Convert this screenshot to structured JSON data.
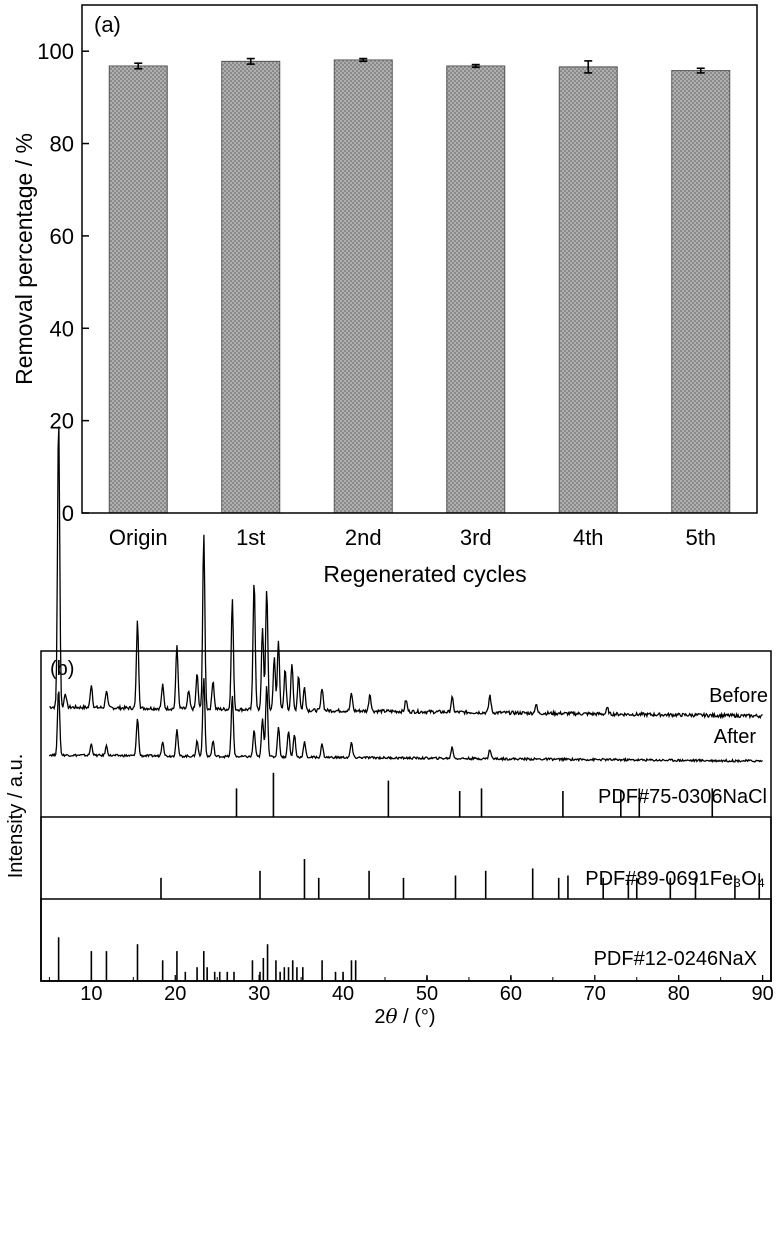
{
  "chart_data": [
    {
      "type": "bar",
      "panel_label": "(a)",
      "categories": [
        "Origin",
        "1st",
        "2nd",
        "3rd",
        "4th",
        "5th"
      ],
      "values": [
        96.8,
        97.8,
        98.1,
        96.8,
        96.6,
        95.8
      ],
      "errors": [
        0.6,
        0.6,
        0.3,
        0.3,
        1.3,
        0.5
      ],
      "xlabel": "Regenerated cycles",
      "ylabel": "Removal percentage / %",
      "ylim": [
        0,
        110
      ],
      "yticks": [
        0,
        20,
        40,
        60,
        80,
        100
      ],
      "bar_color": "#8a8a8a",
      "grid": false
    },
    {
      "type": "line",
      "panel_label": "(b)",
      "xlabel_pre": "2",
      "xlabel_theta": "θ",
      "xlabel_post": " / (°)",
      "ylabel": "Intensity / a.u.",
      "xlim": [
        4,
        91
      ],
      "xticks": [
        10,
        20,
        30,
        40,
        50,
        60,
        70,
        80,
        90
      ],
      "series": [
        {
          "name": "Before",
          "peaks": [
            {
              "x": 6.1,
              "h": 1.0
            },
            {
              "x": 6.9,
              "h": 0.05
            },
            {
              "x": 10.0,
              "h": 0.08
            },
            {
              "x": 11.8,
              "h": 0.06
            },
            {
              "x": 15.5,
              "h": 0.3
            },
            {
              "x": 18.5,
              "h": 0.08
            },
            {
              "x": 20.2,
              "h": 0.22
            },
            {
              "x": 21.6,
              "h": 0.06
            },
            {
              "x": 22.6,
              "h": 0.12
            },
            {
              "x": 23.4,
              "h": 0.6
            },
            {
              "x": 24.5,
              "h": 0.1
            },
            {
              "x": 26.8,
              "h": 0.38
            },
            {
              "x": 29.4,
              "h": 0.45
            },
            {
              "x": 30.4,
              "h": 0.28
            },
            {
              "x": 30.9,
              "h": 0.42
            },
            {
              "x": 31.8,
              "h": 0.18
            },
            {
              "x": 32.3,
              "h": 0.24
            },
            {
              "x": 33.1,
              "h": 0.14
            },
            {
              "x": 33.9,
              "h": 0.16
            },
            {
              "x": 34.7,
              "h": 0.12
            },
            {
              "x": 35.4,
              "h": 0.08
            },
            {
              "x": 37.5,
              "h": 0.08
            },
            {
              "x": 41.0,
              "h": 0.06
            },
            {
              "x": 43.2,
              "h": 0.06
            },
            {
              "x": 47.5,
              "h": 0.04
            },
            {
              "x": 53.0,
              "h": 0.05
            },
            {
              "x": 57.5,
              "h": 0.06
            },
            {
              "x": 63.0,
              "h": 0.03
            },
            {
              "x": 71.5,
              "h": 0.02
            }
          ]
        },
        {
          "name": "After",
          "peaks": [
            {
              "x": 6.1,
              "h": 0.35
            },
            {
              "x": 10.0,
              "h": 0.06
            },
            {
              "x": 11.8,
              "h": 0.05
            },
            {
              "x": 15.5,
              "h": 0.2
            },
            {
              "x": 18.5,
              "h": 0.08
            },
            {
              "x": 20.2,
              "h": 0.14
            },
            {
              "x": 22.6,
              "h": 0.08
            },
            {
              "x": 23.4,
              "h": 0.42
            },
            {
              "x": 24.5,
              "h": 0.08
            },
            {
              "x": 26.8,
              "h": 0.32
            },
            {
              "x": 29.4,
              "h": 0.14
            },
            {
              "x": 30.4,
              "h": 0.2
            },
            {
              "x": 30.9,
              "h": 0.38
            },
            {
              "x": 32.3,
              "h": 0.16
            },
            {
              "x": 33.5,
              "h": 0.14
            },
            {
              "x": 34.2,
              "h": 0.12
            },
            {
              "x": 35.4,
              "h": 0.08
            },
            {
              "x": 37.5,
              "h": 0.07
            },
            {
              "x": 41.0,
              "h": 0.08
            },
            {
              "x": 53.0,
              "h": 0.06
            },
            {
              "x": 57.5,
              "h": 0.05
            }
          ]
        }
      ],
      "references": [
        {
          "name": "PDF#75-0306NaCl",
          "sticks": [
            {
              "x": 27.3,
              "h": 0.55
            },
            {
              "x": 31.7,
              "h": 0.85
            },
            {
              "x": 45.4,
              "h": 0.7
            },
            {
              "x": 53.9,
              "h": 0.5
            },
            {
              "x": 56.5,
              "h": 0.55
            },
            {
              "x": 66.2,
              "h": 0.5
            },
            {
              "x": 73.1,
              "h": 0.5
            },
            {
              "x": 75.3,
              "h": 0.55
            },
            {
              "x": 84.0,
              "h": 0.55
            }
          ]
        },
        {
          "name": "PDF#89-0691Fe₃O₄",
          "sticks": [
            {
              "x": 18.3,
              "h": 0.45
            },
            {
              "x": 30.1,
              "h": 0.6
            },
            {
              "x": 35.4,
              "h": 0.85
            },
            {
              "x": 37.1,
              "h": 0.45
            },
            {
              "x": 43.1,
              "h": 0.6
            },
            {
              "x": 47.2,
              "h": 0.45
            },
            {
              "x": 53.4,
              "h": 0.5
            },
            {
              "x": 57.0,
              "h": 0.6
            },
            {
              "x": 62.6,
              "h": 0.65
            },
            {
              "x": 65.7,
              "h": 0.45
            },
            {
              "x": 66.8,
              "h": 0.5
            },
            {
              "x": 71.0,
              "h": 0.45
            },
            {
              "x": 74.0,
              "h": 0.5
            },
            {
              "x": 75.0,
              "h": 0.45
            },
            {
              "x": 79.0,
              "h": 0.45
            },
            {
              "x": 82.0,
              "h": 0.45
            },
            {
              "x": 86.7,
              "h": 0.5
            },
            {
              "x": 89.6,
              "h": 0.55
            }
          ]
        },
        {
          "name": "PDF#12-0246NaX",
          "sticks": [
            {
              "x": 6.1,
              "h": 0.95
            },
            {
              "x": 10.0,
              "h": 0.65
            },
            {
              "x": 11.8,
              "h": 0.65
            },
            {
              "x": 15.5,
              "h": 0.8
            },
            {
              "x": 18.5,
              "h": 0.45
            },
            {
              "x": 20.2,
              "h": 0.65
            },
            {
              "x": 21.2,
              "h": 0.2
            },
            {
              "x": 22.6,
              "h": 0.3
            },
            {
              "x": 23.4,
              "h": 0.65
            },
            {
              "x": 23.8,
              "h": 0.3
            },
            {
              "x": 24.7,
              "h": 0.2
            },
            {
              "x": 25.3,
              "h": 0.2
            },
            {
              "x": 26.2,
              "h": 0.2
            },
            {
              "x": 27.0,
              "h": 0.2
            },
            {
              "x": 29.2,
              "h": 0.45
            },
            {
              "x": 30.1,
              "h": 0.2
            },
            {
              "x": 30.5,
              "h": 0.5
            },
            {
              "x": 31.0,
              "h": 0.8
            },
            {
              "x": 32.0,
              "h": 0.45
            },
            {
              "x": 32.5,
              "h": 0.2
            },
            {
              "x": 33.0,
              "h": 0.3
            },
            {
              "x": 33.5,
              "h": 0.3
            },
            {
              "x": 34.0,
              "h": 0.45
            },
            {
              "x": 34.5,
              "h": 0.3
            },
            {
              "x": 35.2,
              "h": 0.3
            },
            {
              "x": 37.5,
              "h": 0.45
            },
            {
              "x": 39.1,
              "h": 0.2
            },
            {
              "x": 40.0,
              "h": 0.2
            },
            {
              "x": 41.0,
              "h": 0.45
            },
            {
              "x": 41.5,
              "h": 0.45
            },
            {
              "x": 50.0,
              "h": 0.1
            },
            {
              "x": 60.0,
              "h": 0.1
            }
          ]
        }
      ],
      "grid": false
    }
  ]
}
